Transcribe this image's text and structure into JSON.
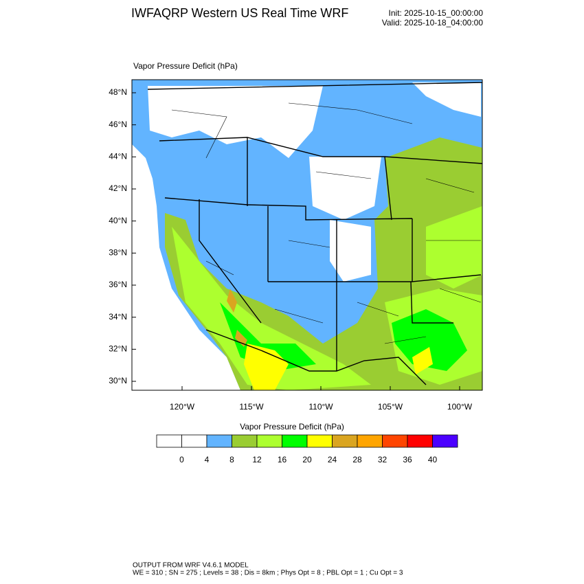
{
  "header": {
    "title": "IWFAQRP Western US Real Time WRF",
    "init": "Init: 2025-10-15_00:00:00",
    "valid": "Valid: 2025-10-18_04:00:00"
  },
  "map": {
    "title": "Vapor Pressure Deficit   (hPa)",
    "lat_labels": [
      "48°N",
      "46°N",
      "44°N",
      "42°N",
      "40°N",
      "38°N",
      "36°N",
      "34°N",
      "32°N",
      "30°N"
    ],
    "lon_labels": [
      "120°W",
      "115°W",
      "110°W",
      "105°W",
      "100°W"
    ]
  },
  "colorbar": {
    "title": "Vapor Pressure Deficit  (hPa)",
    "levels": [
      0,
      4,
      8,
      12,
      16,
      20,
      24,
      28,
      32,
      36,
      40
    ],
    "colors": [
      "#ffffff",
      "#ffffff",
      "#62b4ff",
      "#9acd32",
      "#adff2f",
      "#00ff00",
      "#ffff00",
      "#daa520",
      "#ffa500",
      "#ff4500",
      "#ff0000",
      "#4b00ff"
    ]
  },
  "footer": {
    "line1": "OUTPUT FROM WRF V4.6.1 MODEL",
    "line2": "WE = 310 ; SN = 275 ; Levels = 38 ; Dis = 8km ; Phys Opt = 8 ; PBL Opt = 1 ; Cu Opt = 3"
  }
}
